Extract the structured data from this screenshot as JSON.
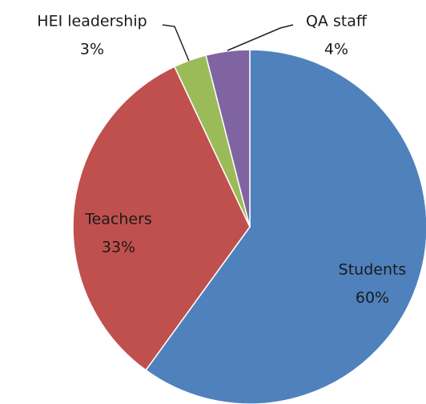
{
  "chart_data": {
    "type": "pie",
    "categories": [
      "Students",
      "Teachers",
      "HEI leadership",
      "QA staff"
    ],
    "values": [
      60,
      33,
      3,
      4
    ],
    "value_labels": [
      "60%",
      "33%",
      "3%",
      "4%"
    ],
    "colors": [
      "#4f81bd",
      "#c0504d",
      "#9bbb59",
      "#8064a2"
    ]
  }
}
